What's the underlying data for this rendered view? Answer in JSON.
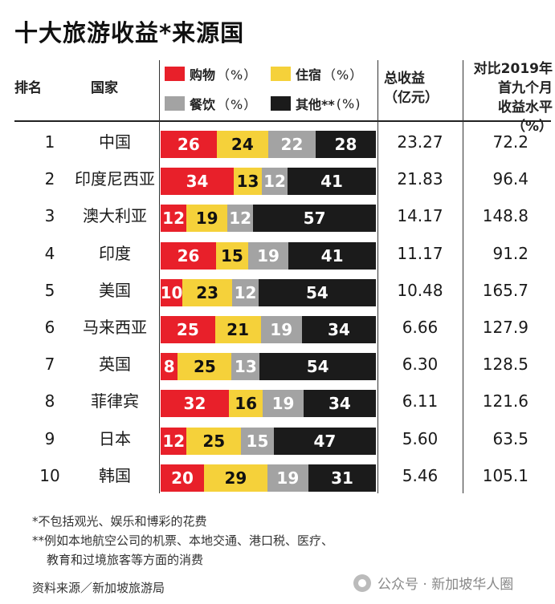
{
  "title": "十大旅游收益*来源国",
  "headers": {
    "rank": "排名",
    "country": "国家",
    "total_line1": "总收益",
    "total_line2": "（亿元）",
    "vs2019_line1": "对比2019年",
    "vs2019_line2": "首九个月",
    "vs2019_line3": "收益水平（%）"
  },
  "legend": [
    {
      "label": "购物",
      "suffix": "（%）",
      "color": "#e8202a"
    },
    {
      "label": "住宿",
      "suffix": "（%）",
      "color": "#f5d13a"
    },
    {
      "label": "餐饮",
      "suffix": "（%）",
      "color": "#a3a3a3"
    },
    {
      "label": "其他**",
      "suffix": "(%)",
      "color": "#1b1b1b"
    }
  ],
  "chart_data": {
    "type": "bar",
    "stacked": true,
    "orientation": "horizontal",
    "title": "十大旅游收益*来源国",
    "categories": [
      "中国",
      "印度尼西亚",
      "澳大利亚",
      "印度",
      "美国",
      "马来西亚",
      "英国",
      "菲律宾",
      "日本",
      "韩国"
    ],
    "ranks": [
      "1",
      "2",
      "3",
      "4",
      "5",
      "6",
      "7",
      "8",
      "9",
      "10"
    ],
    "series": [
      {
        "name": "购物（%）",
        "color": "#e8202a",
        "text_color": "#ffffff",
        "values": [
          26,
          34,
          12,
          26,
          10,
          25,
          8,
          32,
          12,
          20
        ]
      },
      {
        "name": "住宿（%）",
        "color": "#f5d13a",
        "text_color": "#111111",
        "values": [
          24,
          13,
          19,
          15,
          23,
          21,
          25,
          16,
          25,
          29
        ]
      },
      {
        "name": "餐饮（%）",
        "color": "#a3a3a3",
        "text_color": "#ffffff",
        "values": [
          22,
          12,
          12,
          19,
          12,
          19,
          13,
          19,
          15,
          19
        ]
      },
      {
        "name": "其他**(%)",
        "color": "#1b1b1b",
        "text_color": "#ffffff",
        "values": [
          28,
          41,
          57,
          41,
          54,
          34,
          54,
          34,
          47,
          31
        ]
      }
    ],
    "total_revenue": [
      "23.27",
      "21.83",
      "14.17",
      "11.17",
      "10.48",
      "6.66",
      "6.30",
      "6.11",
      "5.60",
      "5.46"
    ],
    "vs_2019_pct": [
      "72.2",
      "96.4",
      "148.8",
      "91.2",
      "165.7",
      "127.9",
      "128.5",
      "121.6",
      "63.5",
      "105.1"
    ]
  },
  "notes": {
    "note1": "*不包括观光、娱乐和博彩的花费",
    "note2": "**例如本地航空公司的机票、本地交通、港口税、医疗、",
    "note3": "教育和过境旅客等方面的消费",
    "source": "资料来源／新加坡旅游局",
    "watermark": "公众号 · 新加坡华人圈"
  }
}
